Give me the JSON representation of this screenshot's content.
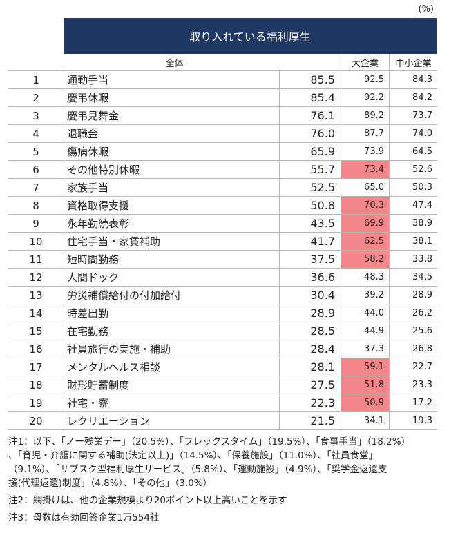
{
  "unit": "(%)",
  "title": "取り入れている福利厚生",
  "columns": {
    "overall": "全体",
    "large": "大企業",
    "small": "中小企業"
  },
  "rows": [
    {
      "rank": 1,
      "name": "通勤手当",
      "overall": "85.5",
      "large": "92.5",
      "small": "84.3",
      "highlight": false
    },
    {
      "rank": 2,
      "name": "慶弔休暇",
      "overall": "85.4",
      "large": "92.2",
      "small": "84.2",
      "highlight": false
    },
    {
      "rank": 3,
      "name": "慶弔見舞金",
      "overall": "76.1",
      "large": "89.2",
      "small": "73.7",
      "highlight": false
    },
    {
      "rank": 4,
      "name": "退職金",
      "overall": "76.0",
      "large": "87.7",
      "small": "74.0",
      "highlight": false
    },
    {
      "rank": 5,
      "name": "傷病休暇",
      "overall": "65.9",
      "large": "73.9",
      "small": "64.5",
      "highlight": false
    },
    {
      "rank": 6,
      "name": "その他特別休暇",
      "overall": "55.7",
      "large": "73.4",
      "small": "52.6",
      "highlight": true
    },
    {
      "rank": 7,
      "name": "家族手当",
      "overall": "52.5",
      "large": "65.0",
      "small": "50.3",
      "highlight": false
    },
    {
      "rank": 8,
      "name": "資格取得支援",
      "overall": "50.8",
      "large": "70.3",
      "small": "47.4",
      "highlight": true
    },
    {
      "rank": 9,
      "name": "永年勤続表彰",
      "overall": "43.5",
      "large": "69.9",
      "small": "38.9",
      "highlight": true
    },
    {
      "rank": 10,
      "name": "住宅手当・家賃補助",
      "overall": "41.7",
      "large": "62.5",
      "small": "38.1",
      "highlight": true
    },
    {
      "rank": 11,
      "name": "短時間勤務",
      "overall": "37.5",
      "large": "58.2",
      "small": "33.8",
      "highlight": true
    },
    {
      "rank": 12,
      "name": "人間ドック",
      "overall": "36.6",
      "large": "48.3",
      "small": "34.5",
      "highlight": false
    },
    {
      "rank": 13,
      "name": "労災補償給付の付加給付",
      "overall": "30.4",
      "large": "39.2",
      "small": "28.9",
      "highlight": false
    },
    {
      "rank": 14,
      "name": "時差出勤",
      "overall": "28.9",
      "large": "44.0",
      "small": "26.2",
      "highlight": false
    },
    {
      "rank": 15,
      "name": "在宅勤務",
      "overall": "28.5",
      "large": "44.9",
      "small": "25.6",
      "highlight": false
    },
    {
      "rank": 16,
      "name": "社員旅行の実施・補助",
      "overall": "28.4",
      "large": "37.3",
      "small": "26.8",
      "highlight": false
    },
    {
      "rank": 17,
      "name": "メンタルヘルス相談",
      "overall": "28.1",
      "large": "59.1",
      "small": "22.7",
      "highlight": true
    },
    {
      "rank": 18,
      "name": "財形貯蓄制度",
      "overall": "27.5",
      "large": "51.8",
      "small": "23.3",
      "highlight": true
    },
    {
      "rank": 19,
      "name": "社宅・寮",
      "overall": "22.3",
      "large": "50.9",
      "small": "17.2",
      "highlight": true
    },
    {
      "rank": 20,
      "name": "レクリエーション",
      "overall": "21.5",
      "large": "34.1",
      "small": "19.3",
      "highlight": false
    }
  ],
  "notes": {
    "note1": [
      "注1：以下、「ノー残業デー」（20.5%）、「フレックスタイム」（19.5%）、「食事手当」（18.2%）",
      "、「育児・介護に関する補助(法定以上)」（14.5%）、「保養施設」（11.0%）、「社員食堂」",
      "（9.1%）、「サブスク型福利厚生サービス」（5.8%）、「運動施設」（4.9%）、「奨学金返還支",
      "援(代理返還)制度」（4.8%）、「その他」（3.0%）"
    ],
    "note2": "注2：網掛けは、他の企業規模より20ポイント以上高いことを示す",
    "note3": "注3：母数は有効回答企業1万554社"
  }
}
